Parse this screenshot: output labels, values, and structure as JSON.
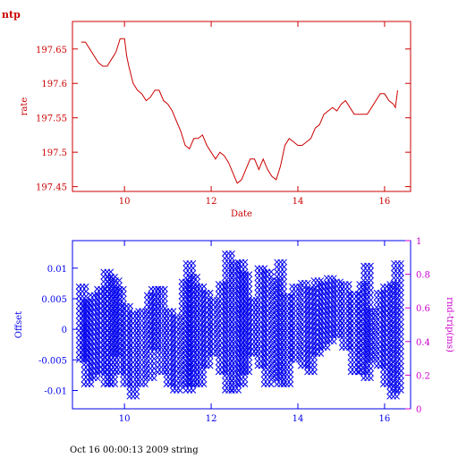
{
  "colors": {
    "rate": "#cc0000",
    "offset": "#0000ee",
    "rtt_axis": "#cc00cc",
    "footer": "#000000"
  },
  "footer": {
    "text": "Oct 16 00:00:13 2009 string"
  },
  "chart_data": [
    {
      "type": "line",
      "title": "ntp",
      "xlabel": "Date",
      "ylabel": "rate",
      "xlim": [
        8.8,
        16.6
      ],
      "ylim": [
        197.443,
        197.69
      ],
      "xticks": [
        10,
        12,
        14,
        16
      ],
      "yticks": [
        197.45,
        197.5,
        197.55,
        197.6,
        197.65
      ],
      "grid": false,
      "series": [
        {
          "x": [
            9.0,
            9.1,
            9.2,
            9.3,
            9.4,
            9.5,
            9.6,
            9.7,
            9.8,
            9.9,
            10.0,
            10.05,
            10.1,
            10.2,
            10.3,
            10.4,
            10.5,
            10.6,
            10.7,
            10.8,
            10.9,
            11.0,
            11.1,
            11.2,
            11.3,
            11.4,
            11.5,
            11.6,
            11.7,
            11.8,
            11.9,
            12.0,
            12.1,
            12.2,
            12.3,
            12.4,
            12.5,
            12.6,
            12.7,
            12.8,
            12.9,
            13.0,
            13.1,
            13.2,
            13.3,
            13.4,
            13.5,
            13.6,
            13.7,
            13.8,
            13.9,
            14.0,
            14.1,
            14.2,
            14.3,
            14.4,
            14.5,
            14.6,
            14.7,
            14.8,
            14.9,
            15.0,
            15.1,
            15.2,
            15.3,
            15.4,
            15.5,
            15.6,
            15.7,
            15.8,
            15.9,
            16.0,
            16.1,
            16.2,
            16.25,
            16.3
          ],
          "y": [
            197.66,
            197.66,
            197.65,
            197.64,
            197.63,
            197.625,
            197.625,
            197.635,
            197.645,
            197.665,
            197.665,
            197.64,
            197.625,
            197.6,
            197.59,
            197.585,
            197.575,
            197.58,
            197.59,
            197.59,
            197.575,
            197.57,
            197.56,
            197.545,
            197.53,
            197.51,
            197.505,
            197.52,
            197.52,
            197.525,
            197.51,
            197.5,
            197.49,
            197.5,
            197.495,
            197.485,
            197.47,
            197.455,
            197.46,
            197.475,
            197.49,
            197.49,
            197.475,
            197.49,
            197.475,
            197.465,
            197.46,
            197.48,
            197.51,
            197.52,
            197.515,
            197.51,
            197.51,
            197.515,
            197.52,
            197.535,
            197.54,
            197.555,
            197.56,
            197.565,
            197.56,
            197.57,
            197.575,
            197.565,
            197.555,
            197.555,
            197.555,
            197.555,
            197.565,
            197.575,
            197.585,
            197.585,
            197.575,
            197.57,
            197.565,
            197.59
          ]
        }
      ]
    },
    {
      "type": "scatter",
      "xlabel": "",
      "ylabel": "Offset",
      "y2label": "rnd-trip(ms)",
      "xlim": [
        8.8,
        16.6
      ],
      "ylim": [
        -0.013,
        0.0145
      ],
      "y2lim": [
        0,
        1
      ],
      "xticks": [
        10,
        12,
        14,
        16
      ],
      "yticks": [
        -0.01,
        -0.005,
        0,
        0.005,
        0.01
      ],
      "y2ticks": [
        0,
        0.2,
        0.4,
        0.6,
        0.8,
        1
      ],
      "grid": false,
      "marker": "x",
      "series": [
        {
          "x": [
            9.03,
            9.15,
            9.3,
            9.45,
            9.6,
            9.7,
            9.8,
            9.9,
            10.05,
            10.2,
            10.4,
            10.6,
            10.7,
            10.85,
            11.05,
            11.2,
            11.4,
            11.5,
            11.6,
            11.75,
            11.9,
            12.05,
            12.25,
            12.4,
            12.55,
            12.7,
            12.8,
            12.95,
            13.15,
            13.3,
            13.5,
            13.6,
            13.75,
            13.95,
            14.15,
            14.3,
            14.45,
            14.6,
            14.75,
            14.9,
            15.1,
            15.3,
            15.5,
            15.6,
            15.7,
            15.9,
            16.05,
            16.2,
            16.3
          ],
          "ymin": [
            -0.005,
            -0.009,
            -0.008,
            -0.007,
            -0.009,
            -0.009,
            -0.004,
            -0.007,
            -0.009,
            -0.011,
            -0.009,
            -0.008,
            -0.003,
            -0.007,
            -0.009,
            -0.01,
            -0.009,
            -0.01,
            -0.009,
            -0.009,
            -0.006,
            -0.004,
            -0.007,
            -0.01,
            -0.01,
            -0.009,
            -0.007,
            -0.004,
            -0.006,
            -0.009,
            -0.008,
            -0.009,
            -0.009,
            -0.005,
            -0.006,
            -0.007,
            -0.004,
            -0.003,
            -0.002,
            -0.001,
            -0.003,
            -0.007,
            -0.007,
            -0.008,
            -0.005,
            -0.006,
            -0.009,
            -0.011,
            -0.01
          ],
          "ymax": [
            0.007,
            0.005,
            0.006,
            0.007,
            0.01,
            0.009,
            0.008,
            0.007,
            0.004,
            0.003,
            0.003,
            0.006,
            0.007,
            0.007,
            0.003,
            0.002,
            0.008,
            0.011,
            0.009,
            0.007,
            0.006,
            0.005,
            0.008,
            0.013,
            0.011,
            0.011,
            0.009,
            0.005,
            0.01,
            0.01,
            0.008,
            0.011,
            0.006,
            0.007,
            0.008,
            0.007,
            0.008,
            0.008,
            0.009,
            0.008,
            0.008,
            0.006,
            0.008,
            0.011,
            0.003,
            0.006,
            0.007,
            0.008,
            0.011
          ]
        }
      ]
    }
  ]
}
